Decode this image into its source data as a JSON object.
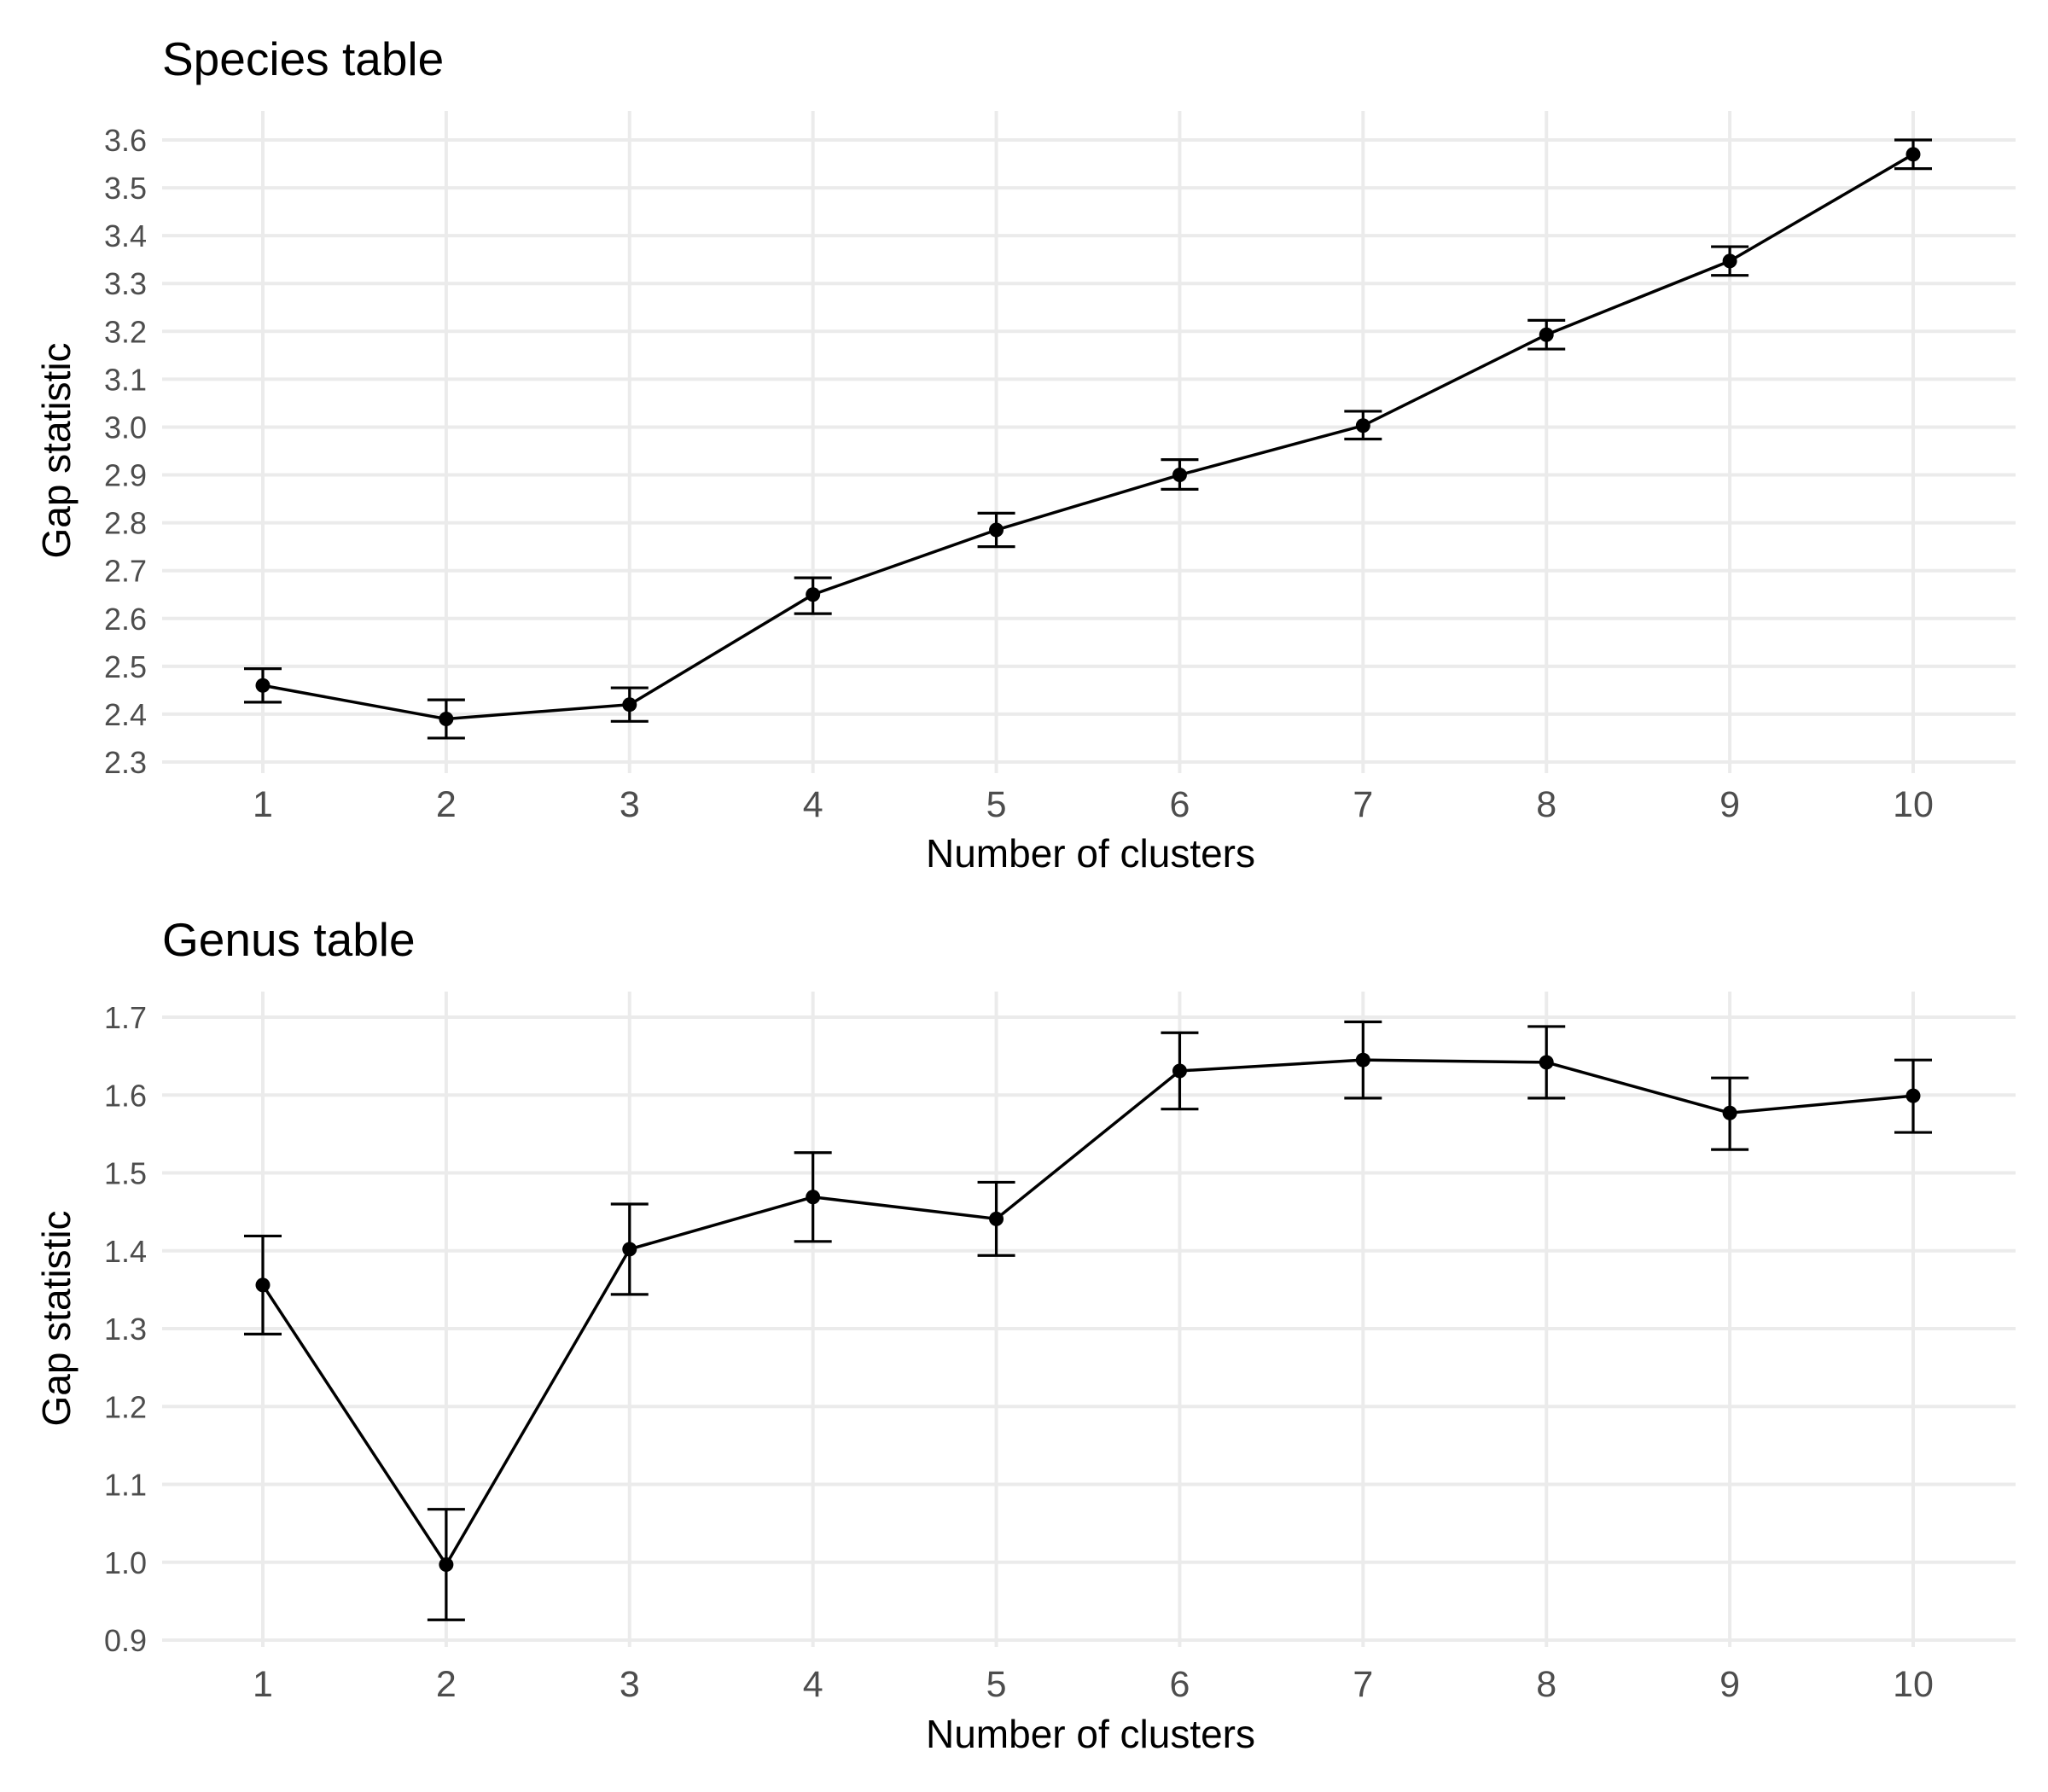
{
  "chart_data": [
    {
      "type": "line",
      "title": "Species table",
      "xlabel": "Number of clusters",
      "ylabel": "Gap statistic",
      "x": [
        1,
        2,
        3,
        4,
        5,
        6,
        7,
        8,
        9,
        10
      ],
      "x_ticks": [
        "1",
        "2",
        "3",
        "4",
        "5",
        "6",
        "7",
        "8",
        "9",
        "10"
      ],
      "y_ticks": [
        "2.3",
        "2.4",
        "2.5",
        "2.6",
        "2.7",
        "2.8",
        "2.9",
        "3.0",
        "3.1",
        "3.2",
        "3.3",
        "3.4",
        "3.5",
        "3.6"
      ],
      "ylim": [
        2.3,
        3.6
      ],
      "series": [
        {
          "values": [
            2.46,
            2.39,
            2.42,
            2.65,
            2.785,
            2.9,
            3.003,
            3.193,
            3.347,
            3.57
          ],
          "lower": [
            2.425,
            2.35,
            2.385,
            2.61,
            2.75,
            2.87,
            2.975,
            3.163,
            3.317,
            3.54
          ],
          "upper": [
            2.495,
            2.43,
            2.455,
            2.685,
            2.82,
            2.932,
            3.033,
            3.223,
            3.377,
            3.6
          ]
        }
      ],
      "grid": true,
      "colors": {
        "line": "#000000",
        "grid": "#ebebeb"
      }
    },
    {
      "type": "line",
      "title": "Genus table",
      "xlabel": "Number of clusters",
      "ylabel": "Gap statistic",
      "x": [
        1,
        2,
        3,
        4,
        5,
        6,
        7,
        8,
        9,
        10
      ],
      "x_ticks": [
        "1",
        "2",
        "3",
        "4",
        "5",
        "6",
        "7",
        "8",
        "9",
        "10"
      ],
      "y_ticks": [
        "0.9",
        "1.0",
        "1.1",
        "1.2",
        "1.3",
        "1.4",
        "1.5",
        "1.6",
        "1.7"
      ],
      "ylim": [
        0.9,
        1.7
      ],
      "series": [
        {
          "values": [
            1.356,
            0.997,
            1.402,
            1.469,
            1.441,
            1.631,
            1.645,
            1.642,
            1.577,
            1.599
          ],
          "lower": [
            1.293,
            0.926,
            1.344,
            1.412,
            1.394,
            1.582,
            1.596,
            1.596,
            1.53,
            1.552
          ],
          "upper": [
            1.419,
            1.068,
            1.46,
            1.526,
            1.488,
            1.68,
            1.694,
            1.688,
            1.622,
            1.645
          ]
        }
      ],
      "grid": true,
      "colors": {
        "line": "#000000",
        "grid": "#ebebeb"
      }
    }
  ]
}
